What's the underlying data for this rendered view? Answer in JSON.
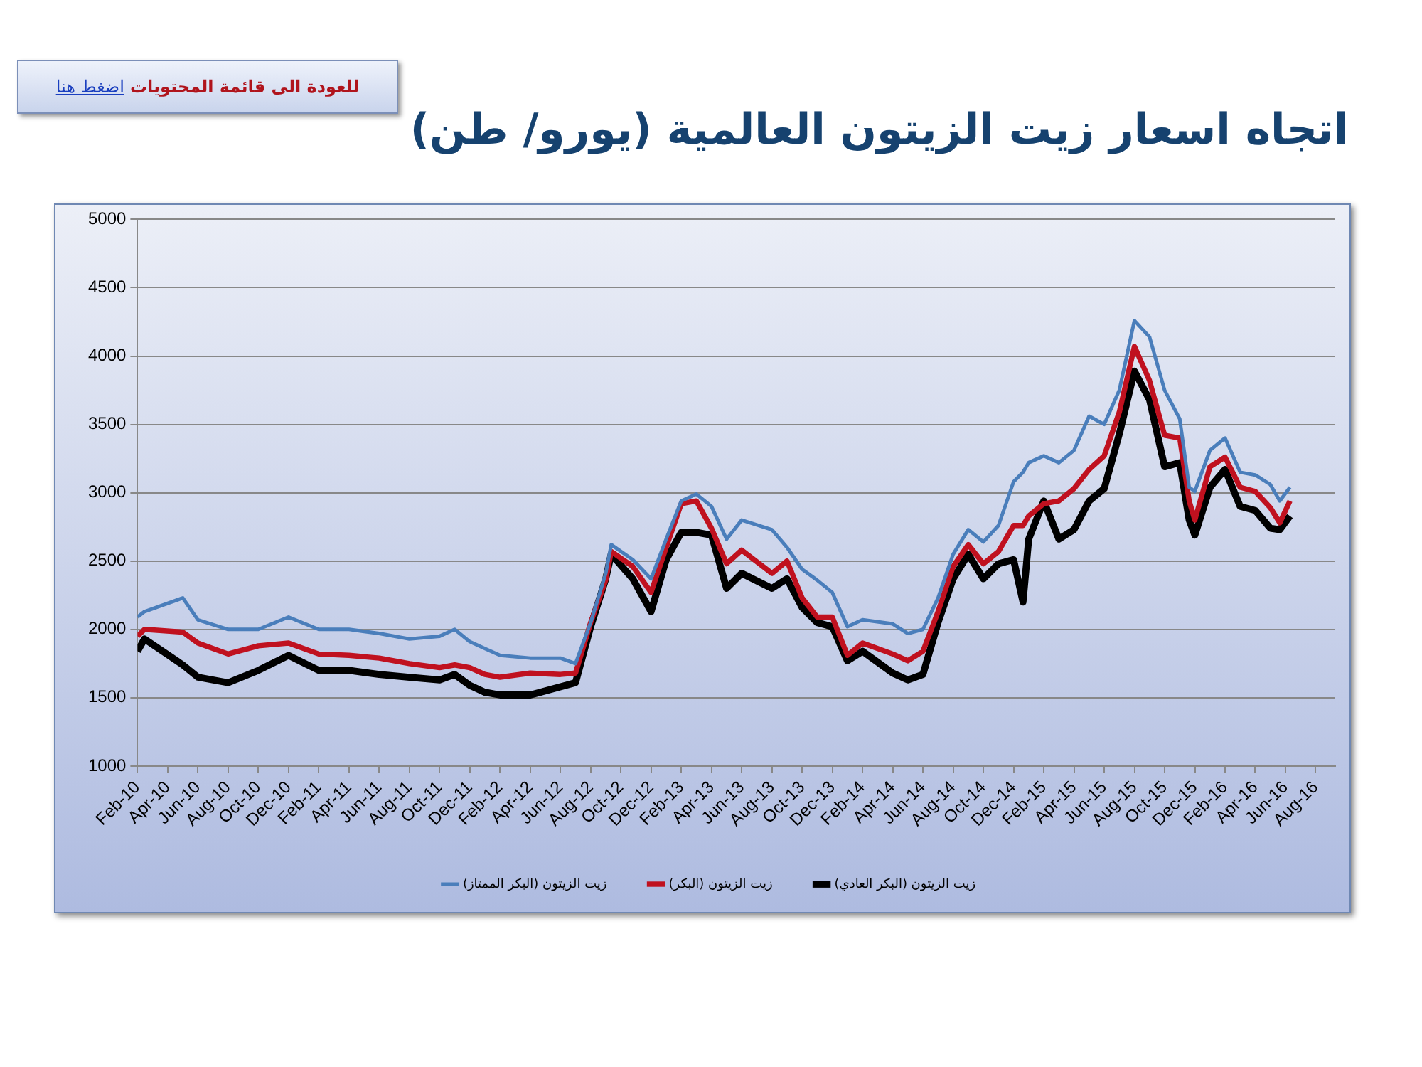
{
  "chart_data": {
    "type": "line",
    "title": "اتجاه اسعار زيت الزيتون العالمية (يورو/ طن)",
    "annotations": [
      "للعودة الى قائمة المحتويات",
      "اضغط هنا"
    ],
    "x": [
      "2010-02-01",
      "2010-02-15",
      "2010-05-01",
      "2010-06-01",
      "2010-08-01",
      "2010-10-01",
      "2010-12-01",
      "2011-02-01",
      "2011-04-01",
      "2011-06-01",
      "2011-08-01",
      "2011-10-01",
      "2011-11-01",
      "2011-12-01",
      "2012-01-01",
      "2012-02-01",
      "2012-04-01",
      "2012-06-01",
      "2012-07-01",
      "2012-08-01",
      "2012-09-01",
      "2012-09-12",
      "2012-10-25",
      "2012-12-01",
      "2013-01-01",
      "2013-02-01",
      "2013-03-01",
      "2013-04-01",
      "2013-05-01",
      "2013-06-01",
      "2013-08-01",
      "2013-09-01",
      "2013-10-01",
      "2013-11-01",
      "2013-12-01",
      "2014-01-01",
      "2014-02-01",
      "2014-04-01",
      "2014-05-01",
      "2014-06-01",
      "2014-07-01",
      "2014-08-01",
      "2014-09-01",
      "2014-10-01",
      "2014-11-01",
      "2014-12-01",
      "2014-12-20",
      "2015-01-01",
      "2015-02-01",
      "2015-03-01",
      "2015-04-01",
      "2015-05-01",
      "2015-06-01",
      "2015-07-01",
      "2015-08-01",
      "2015-09-01",
      "2015-10-01",
      "2015-11-01",
      "2015-11-20",
      "2015-12-01",
      "2016-01-01",
      "2016-02-01",
      "2016-03-01",
      "2016-04-01",
      "2016-05-01",
      "2016-05-20",
      "2016-06-10"
    ],
    "series": [
      {
        "name": "زيت الزيتون (البكر الممتاز)",
        "color": "#4a7ebb",
        "values": [
          2090,
          2130,
          2230,
          2070,
          2000,
          2000,
          2090,
          2000,
          2000,
          1970,
          1930,
          1950,
          2000,
          1910,
          1860,
          1810,
          1790,
          1790,
          1750,
          2050,
          2410,
          2620,
          2510,
          2370,
          2660,
          2940,
          2990,
          2900,
          2660,
          2800,
          2730,
          2600,
          2440,
          2360,
          2270,
          2020,
          2070,
          2040,
          1970,
          2000,
          2230,
          2550,
          2730,
          2640,
          2760,
          3080,
          3150,
          3220,
          3270,
          3220,
          3310,
          3560,
          3500,
          3750,
          4260,
          4140,
          3750,
          3540,
          3040,
          3010,
          3310,
          3400,
          3150,
          3130,
          3060,
          2940,
          3040
        ]
      },
      {
        "name": "زيت الزيتون (البكر)",
        "color": "#c0111f",
        "values": [
          1950,
          2000,
          1980,
          1900,
          1820,
          1880,
          1900,
          1820,
          1810,
          1790,
          1750,
          1720,
          1740,
          1720,
          1670,
          1650,
          1680,
          1670,
          1680,
          2050,
          2360,
          2570,
          2460,
          2270,
          2600,
          2920,
          2940,
          2740,
          2480,
          2580,
          2410,
          2500,
          2230,
          2090,
          2090,
          1810,
          1900,
          1820,
          1770,
          1840,
          2130,
          2460,
          2620,
          2480,
          2570,
          2760,
          2760,
          2830,
          2920,
          2940,
          3030,
          3170,
          3270,
          3590,
          4070,
          3820,
          3420,
          3400,
          2940,
          2800,
          3190,
          3260,
          3040,
          3010,
          2890,
          2780,
          2940
        ]
      },
      {
        "name": "زيت الزيتون (البكر العادي)",
        "color": "#000000",
        "values": [
          1840,
          1930,
          1740,
          1650,
          1610,
          1700,
          1810,
          1700,
          1700,
          1670,
          1650,
          1630,
          1670,
          1590,
          1540,
          1520,
          1520,
          1580,
          1610,
          2020,
          2370,
          2550,
          2370,
          2130,
          2510,
          2710,
          2710,
          2690,
          2300,
          2410,
          2300,
          2370,
          2160,
          2050,
          2020,
          1770,
          1840,
          1680,
          1630,
          1670,
          2050,
          2370,
          2550,
          2370,
          2480,
          2510,
          2200,
          2660,
          2940,
          2660,
          2730,
          2940,
          3030,
          3430,
          3890,
          3680,
          3190,
          3220,
          2800,
          2690,
          3040,
          3170,
          2900,
          2870,
          2740,
          2730,
          2830
        ]
      }
    ],
    "xlim": [
      "2010-02-01",
      "2016-09-10"
    ],
    "xticks": [
      {
        "value": "2010-02-01",
        "label": "Feb-10"
      },
      {
        "value": "2010-04-01",
        "label": "Apr-10"
      },
      {
        "value": "2010-06-01",
        "label": "Jun-10"
      },
      {
        "value": "2010-08-01",
        "label": "Aug-10"
      },
      {
        "value": "2010-10-01",
        "label": "Oct-10"
      },
      {
        "value": "2010-12-01",
        "label": "Dec-10"
      },
      {
        "value": "2011-02-01",
        "label": "Feb-11"
      },
      {
        "value": "2011-04-01",
        "label": "Apr-11"
      },
      {
        "value": "2011-06-01",
        "label": "Jun-11"
      },
      {
        "value": "2011-08-01",
        "label": "Aug-11"
      },
      {
        "value": "2011-10-01",
        "label": "Oct-11"
      },
      {
        "value": "2011-12-01",
        "label": "Dec-11"
      },
      {
        "value": "2012-02-01",
        "label": "Feb-12"
      },
      {
        "value": "2012-04-01",
        "label": "Apr-12"
      },
      {
        "value": "2012-06-01",
        "label": "Jun-12"
      },
      {
        "value": "2012-08-01",
        "label": "Aug-12"
      },
      {
        "value": "2012-10-01",
        "label": "Oct-12"
      },
      {
        "value": "2012-12-01",
        "label": "Dec-12"
      },
      {
        "value": "2013-02-01",
        "label": "Feb-13"
      },
      {
        "value": "2013-04-01",
        "label": "Apr-13"
      },
      {
        "value": "2013-06-01",
        "label": "Jun-13"
      },
      {
        "value": "2013-08-01",
        "label": "Aug-13"
      },
      {
        "value": "2013-10-01",
        "label": "Oct-13"
      },
      {
        "value": "2013-12-01",
        "label": "Dec-13"
      },
      {
        "value": "2014-02-01",
        "label": "Feb-14"
      },
      {
        "value": "2014-04-01",
        "label": "Apr-14"
      },
      {
        "value": "2014-06-01",
        "label": "Jun-14"
      },
      {
        "value": "2014-08-01",
        "label": "Aug-14"
      },
      {
        "value": "2014-10-01",
        "label": "Oct-14"
      },
      {
        "value": "2014-12-01",
        "label": "Dec-14"
      },
      {
        "value": "2015-02-01",
        "label": "Feb-15"
      },
      {
        "value": "2015-04-01",
        "label": "Apr-15"
      },
      {
        "value": "2015-06-01",
        "label": "Jun-15"
      },
      {
        "value": "2015-08-01",
        "label": "Aug-15"
      },
      {
        "value": "2015-10-01",
        "label": "Oct-15"
      },
      {
        "value": "2015-12-01",
        "label": "Dec-15"
      },
      {
        "value": "2016-02-01",
        "label": "Feb-16"
      },
      {
        "value": "2016-04-01",
        "label": "Apr-16"
      },
      {
        "value": "2016-06-01",
        "label": "Jun-16"
      },
      {
        "value": "2016-08-01",
        "label": "Aug-16"
      }
    ],
    "ylim": [
      1000,
      5000
    ],
    "yticks": [
      1000,
      1500,
      2000,
      2500,
      3000,
      3500,
      4000,
      4500,
      5000
    ],
    "grid": "y",
    "legend": "bottom",
    "marker": "none",
    "line_style": "solid"
  }
}
